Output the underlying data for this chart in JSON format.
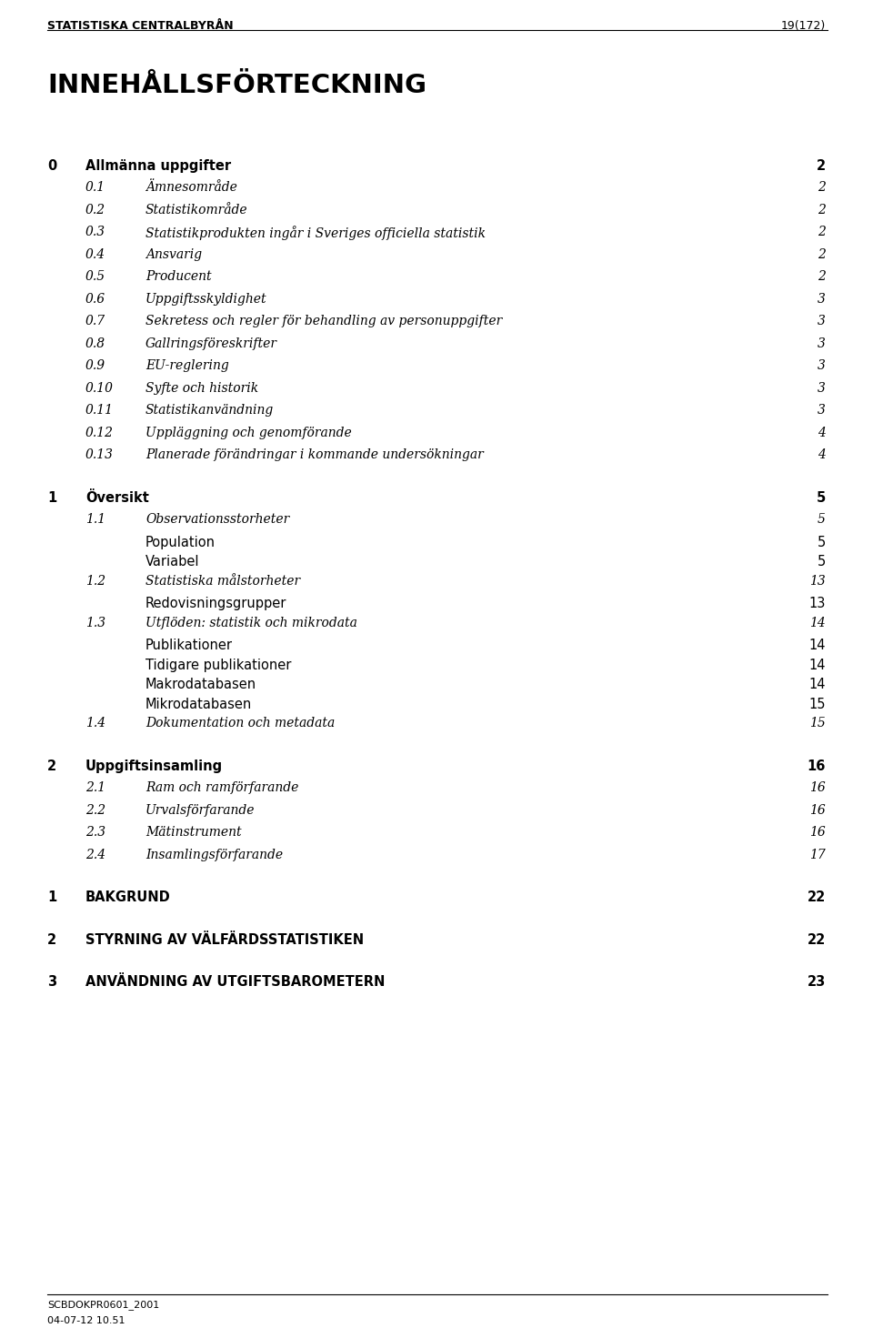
{
  "header_left": "STATISTISKA CENTRALBYRÅN",
  "header_right": "19(172)",
  "footer_left": "SCBDOKPR0601_2001",
  "footer_left2": "04-07-12 10.51",
  "title": "INNEHÅLLSFÖRTECKNING",
  "entries": [
    {
      "num": "0",
      "text": "Allmänna uppgifter",
      "page": "2",
      "level": 0,
      "bold": true,
      "italic": false,
      "pre_space": false
    },
    {
      "num": "0.1",
      "text": "Ämnesområde",
      "page": "2",
      "level": 1,
      "bold": false,
      "italic": true,
      "pre_space": false
    },
    {
      "num": "0.2",
      "text": "Statistikområde",
      "page": "2",
      "level": 1,
      "bold": false,
      "italic": true,
      "pre_space": false
    },
    {
      "num": "0.3",
      "text": "Statistikprodukten ingår i Sveriges officiella statistik",
      "page": "2",
      "level": 1,
      "bold": false,
      "italic": true,
      "pre_space": false
    },
    {
      "num": "0.4",
      "text": "Ansvarig",
      "page": "2",
      "level": 1,
      "bold": false,
      "italic": true,
      "pre_space": false
    },
    {
      "num": "0.5",
      "text": "Producent",
      "page": "2",
      "level": 1,
      "bold": false,
      "italic": true,
      "pre_space": false
    },
    {
      "num": "0.6",
      "text": "Uppgiftsskyldighet",
      "page": "3",
      "level": 1,
      "bold": false,
      "italic": true,
      "pre_space": false
    },
    {
      "num": "0.7",
      "text": "Sekretess och regler för behandling av personuppgifter",
      "page": "3",
      "level": 1,
      "bold": false,
      "italic": true,
      "pre_space": false
    },
    {
      "num": "0.8",
      "text": "Gallringsföreskrifter",
      "page": "3",
      "level": 1,
      "bold": false,
      "italic": true,
      "pre_space": false
    },
    {
      "num": "0.9",
      "text": "EU-reglering",
      "page": "3",
      "level": 1,
      "bold": false,
      "italic": true,
      "pre_space": false
    },
    {
      "num": "0.10",
      "text": "Syfte och historik",
      "page": "3",
      "level": 1,
      "bold": false,
      "italic": true,
      "pre_space": false
    },
    {
      "num": "0.11",
      "text": "Statistikanvändning",
      "page": "3",
      "level": 1,
      "bold": false,
      "italic": true,
      "pre_space": false
    },
    {
      "num": "0.12",
      "text": "Uppläggning och genomförande",
      "page": "4",
      "level": 1,
      "bold": false,
      "italic": true,
      "pre_space": false
    },
    {
      "num": "0.13",
      "text": "Planerade förändringar i kommande undersökningar",
      "page": "4",
      "level": 1,
      "bold": false,
      "italic": true,
      "pre_space": false
    },
    {
      "num": "1",
      "text": "Översikt",
      "page": "5",
      "level": 0,
      "bold": true,
      "italic": false,
      "pre_space": true
    },
    {
      "num": "1.1",
      "text": "Observationsstorheter",
      "page": "5",
      "level": 1,
      "bold": false,
      "italic": true,
      "pre_space": false
    },
    {
      "num": "",
      "text": "Population",
      "page": "5",
      "level": 2,
      "bold": false,
      "italic": false,
      "pre_space": false
    },
    {
      "num": "",
      "text": "Variabel",
      "page": "5",
      "level": 2,
      "bold": false,
      "italic": false,
      "pre_space": false
    },
    {
      "num": "1.2",
      "text": "Statistiska målstorheter",
      "page": "13",
      "level": 1,
      "bold": false,
      "italic": true,
      "pre_space": false
    },
    {
      "num": "",
      "text": "Redovisningsgrupper",
      "page": "13",
      "level": 2,
      "bold": false,
      "italic": false,
      "pre_space": false
    },
    {
      "num": "1.3",
      "text": "Utflöden: statistik och mikrodata",
      "page": "14",
      "level": 1,
      "bold": false,
      "italic": true,
      "pre_space": false
    },
    {
      "num": "",
      "text": "Publikationer",
      "page": "14",
      "level": 2,
      "bold": false,
      "italic": false,
      "pre_space": false
    },
    {
      "num": "",
      "text": "Tidigare publikationer",
      "page": "14",
      "level": 2,
      "bold": false,
      "italic": false,
      "pre_space": false
    },
    {
      "num": "",
      "text": "Makrodatabasen",
      "page": "14",
      "level": 2,
      "bold": false,
      "italic": false,
      "pre_space": false
    },
    {
      "num": "",
      "text": "Mikrodatabasen",
      "page": "15",
      "level": 2,
      "bold": false,
      "italic": false,
      "pre_space": false
    },
    {
      "num": "1.4",
      "text": "Dokumentation och metadata",
      "page": "15",
      "level": 1,
      "bold": false,
      "italic": true,
      "pre_space": false
    },
    {
      "num": "2",
      "text": "Uppgiftsinsamling",
      "page": "16",
      "level": 0,
      "bold": true,
      "italic": false,
      "pre_space": true
    },
    {
      "num": "2.1",
      "text": "Ram och ramförfarande",
      "page": "16",
      "level": 1,
      "bold": false,
      "italic": true,
      "pre_space": false
    },
    {
      "num": "2.2",
      "text": "Urvalsförfarande",
      "page": "16",
      "level": 1,
      "bold": false,
      "italic": true,
      "pre_space": false
    },
    {
      "num": "2.3",
      "text": "Mätinstrument",
      "page": "16",
      "level": 1,
      "bold": false,
      "italic": true,
      "pre_space": false
    },
    {
      "num": "2.4",
      "text": "Insamlingsförfarande",
      "page": "17",
      "level": 1,
      "bold": false,
      "italic": true,
      "pre_space": false
    },
    {
      "num": "1",
      "text": "BAKGRUND",
      "page": "22",
      "level": 0,
      "bold": true,
      "italic": false,
      "pre_space": true
    },
    {
      "num": "2",
      "text": "STYRNING AV VÄLFÄRDSSTATISTIKEN",
      "page": "22",
      "level": 0,
      "bold": true,
      "italic": false,
      "pre_space": true
    },
    {
      "num": "3",
      "text": "ANVÄNDNING AV UTGIFTSBAROMETERN",
      "page": "23",
      "level": 0,
      "bold": true,
      "italic": false,
      "pre_space": true
    }
  ],
  "bg_color": "#ffffff",
  "text_color": "#000000"
}
